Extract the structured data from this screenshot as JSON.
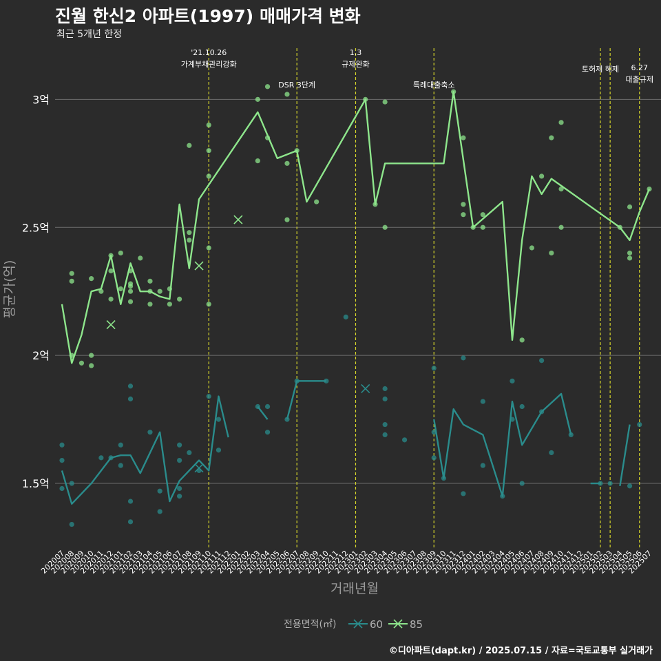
{
  "header": {
    "title": "진월 한신2 아파트(1997) 매매가격 변화",
    "subtitle": "최근 5개년 한정"
  },
  "caption": "©디아파트(dapt.kr) / 2025.07.15 / 자료=국토교통부 실거래가",
  "colors": {
    "background": "#2b2b2b",
    "grid": "#6e6e6e",
    "event_line": "#d7d72a",
    "series_60": "#2a8c8c",
    "series_85": "#8ee68c"
  },
  "chart_data": {
    "type": "line",
    "xlabel": "거래년월",
    "ylabel": "평균가(억)",
    "y_unit": "억",
    "ylim": [
      1.25,
      3.2
    ],
    "yticks": [
      1.5,
      2,
      2.5,
      3
    ],
    "ytick_labels": [
      "1.5억",
      "2억",
      "2.5억",
      "3억"
    ],
    "grid": true,
    "categories": [
      "202007",
      "202008",
      "202009",
      "202010",
      "202011",
      "202012",
      "202101",
      "202102",
      "202103",
      "202104",
      "202105",
      "202106",
      "202107",
      "202108",
      "202109",
      "202110",
      "202111",
      "202112",
      "202201",
      "202202",
      "202203",
      "202204",
      "202205",
      "202206",
      "202207",
      "202208",
      "202209",
      "202210",
      "202211",
      "202212",
      "202301",
      "202302",
      "202303",
      "202304",
      "202305",
      "202306",
      "202307",
      "202308",
      "202309",
      "202310",
      "202311",
      "202312",
      "202401",
      "202402",
      "202403",
      "202404",
      "202405",
      "202406",
      "202407",
      "202408",
      "202409",
      "202410",
      "202411",
      "202412",
      "202501",
      "202502",
      "202503",
      "202504",
      "202505",
      "202506",
      "202507"
    ],
    "legend": {
      "title": "전용면적(㎡)",
      "position": "bottom",
      "items": [
        "60",
        "85"
      ]
    },
    "events": [
      {
        "x": "202110",
        "label": "'21.10.26\n가계부채관리강화"
      },
      {
        "x": "202207",
        "label": "DSR 3단계"
      },
      {
        "x": "202301",
        "label": "1.3\n규제완화"
      },
      {
        "x": "202309",
        "label": "특례대출축소"
      },
      {
        "x": "202502",
        "label": "토허제 해제"
      },
      {
        "x": "202503",
        "label": ""
      },
      {
        "x": "202506",
        "label": "6.27\n대출규제"
      }
    ],
    "series": [
      {
        "name": "60",
        "line": [
          [
            "202007",
            1.55
          ],
          [
            "202008",
            1.42
          ],
          [
            "202009",
            1.46
          ],
          [
            "202010",
            1.5
          ],
          [
            "202011",
            1.55
          ],
          [
            "202012",
            1.6
          ],
          [
            "202101",
            1.61
          ],
          [
            "202102",
            1.61
          ],
          [
            "202103",
            1.54
          ],
          [
            "202104",
            1.62
          ],
          [
            "202105",
            1.7
          ],
          [
            "202106",
            1.43
          ],
          [
            "202107",
            1.51
          ],
          [
            "202108",
            1.55
          ],
          [
            "202109",
            1.59
          ],
          [
            "202110",
            1.55
          ],
          [
            "202111",
            1.84
          ],
          [
            "202112",
            1.68
          ],
          null,
          [
            "202203",
            1.8
          ],
          [
            "202204",
            1.75
          ],
          null,
          [
            "202206",
            1.75
          ],
          [
            "202207",
            1.9
          ],
          [
            "202208",
            1.9
          ],
          [
            "202209",
            1.9
          ],
          [
            "202210",
            1.9
          ],
          null,
          [
            "202309",
            1.75
          ],
          [
            "202310",
            1.52
          ],
          [
            "202311",
            1.79
          ],
          [
            "202312",
            1.73
          ],
          [
            "202402",
            1.69
          ],
          [
            "202404",
            1.45
          ],
          [
            "202405",
            1.82
          ],
          [
            "202406",
            1.65
          ],
          [
            "202408",
            1.78
          ],
          [
            "202410",
            1.85
          ],
          [
            "202411",
            1.69
          ],
          null,
          [
            "202501",
            1.5
          ],
          [
            "202502",
            1.5
          ],
          null,
          [
            "202504",
            1.49
          ],
          [
            "202505",
            1.73
          ]
        ],
        "points": [
          [
            "202007",
            1.65
          ],
          [
            "202007",
            1.59
          ],
          [
            "202007",
            1.48
          ],
          [
            "202008",
            1.34
          ],
          [
            "202008",
            1.5
          ],
          [
            "202011",
            1.6
          ],
          [
            "202012",
            1.6
          ],
          [
            "202101",
            1.65
          ],
          [
            "202101",
            1.57
          ],
          [
            "202102",
            1.88
          ],
          [
            "202102",
            1.83
          ],
          [
            "202102",
            1.43
          ],
          [
            "202102",
            1.35
          ],
          [
            "202104",
            1.7
          ],
          [
            "202105",
            1.47
          ],
          [
            "202105",
            1.39
          ],
          [
            "202107",
            1.65
          ],
          [
            "202107",
            1.59
          ],
          [
            "202107",
            1.48
          ],
          [
            "202107",
            1.45
          ],
          [
            "202108",
            1.62
          ],
          [
            "202109",
            1.55
          ],
          [
            "202110",
            1.84
          ],
          [
            "202111",
            1.75
          ],
          [
            "202111",
            1.63
          ],
          [
            "202203",
            1.8
          ],
          [
            "202204",
            1.8
          ],
          [
            "202204",
            1.7
          ],
          [
            "202206",
            1.75
          ],
          [
            "202207",
            1.9
          ],
          [
            "202210",
            1.9
          ],
          [
            "202212",
            2.15
          ],
          [
            "202304",
            1.87
          ],
          [
            "202304",
            1.83
          ],
          [
            "202304",
            1.73
          ],
          [
            "202304",
            1.69
          ],
          [
            "202306",
            1.67
          ],
          [
            "202309",
            1.95
          ],
          [
            "202309",
            1.7
          ],
          [
            "202309",
            1.6
          ],
          [
            "202310",
            1.52
          ],
          [
            "202312",
            1.99
          ],
          [
            "202312",
            1.46
          ],
          [
            "202402",
            1.82
          ],
          [
            "202402",
            1.57
          ],
          [
            "202404",
            1.45
          ],
          [
            "202405",
            1.9
          ],
          [
            "202405",
            1.75
          ],
          [
            "202406",
            1.8
          ],
          [
            "202406",
            1.5
          ],
          [
            "202408",
            1.98
          ],
          [
            "202408",
            1.78
          ],
          [
            "202409",
            1.62
          ],
          [
            "202411",
            1.69
          ],
          [
            "202502",
            1.5
          ],
          [
            "202503",
            1.5
          ],
          [
            "202505",
            1.49
          ],
          [
            "202506",
            1.73
          ]
        ],
        "x_markers": [
          [
            "202109",
            1.56
          ],
          [
            "202302",
            1.87
          ]
        ]
      },
      {
        "name": "85",
        "line": [
          [
            "202007",
            2.2
          ],
          [
            "202008",
            1.97
          ],
          [
            "202009",
            2.08
          ],
          [
            "202010",
            2.25
          ],
          [
            "202011",
            2.26
          ],
          [
            "202012",
            2.39
          ],
          [
            "202101",
            2.2
          ],
          [
            "202102",
            2.36
          ],
          [
            "202103",
            2.25
          ],
          [
            "202104",
            2.25
          ],
          [
            "202105",
            2.23
          ],
          [
            "202106",
            2.22
          ],
          [
            "202107",
            2.59
          ],
          [
            "202108",
            2.34
          ],
          [
            "202109",
            2.61
          ],
          [
            "202203",
            2.95
          ],
          [
            "202205",
            2.77
          ],
          [
            "202207",
            2.8
          ],
          [
            "202208",
            2.6
          ],
          [
            "202302",
            3.0
          ],
          [
            "202303",
            2.59
          ],
          [
            "202304",
            2.75
          ],
          [
            "202310",
            2.75
          ],
          [
            "202311",
            3.03
          ],
          [
            "202401",
            2.5
          ],
          [
            "202404",
            2.6
          ],
          [
            "202405",
            2.06
          ],
          [
            "202406",
            2.45
          ],
          [
            "202407",
            2.7
          ],
          [
            "202408",
            2.63
          ],
          [
            "202409",
            2.69
          ],
          [
            "202504",
            2.5
          ],
          [
            "202505",
            2.45
          ],
          [
            "202506",
            2.56
          ],
          [
            "202507",
            2.65
          ]
        ],
        "points": [
          [
            "202008",
            2.32
          ],
          [
            "202008",
            2.29
          ],
          [
            "202008",
            2.0
          ],
          [
            "202009",
            1.97
          ],
          [
            "202010",
            2.3
          ],
          [
            "202010",
            2.0
          ],
          [
            "202010",
            1.96
          ],
          [
            "202011",
            2.25
          ],
          [
            "202012",
            2.39
          ],
          [
            "202012",
            2.33
          ],
          [
            "202012",
            2.22
          ],
          [
            "202101",
            2.4
          ],
          [
            "202101",
            2.26
          ],
          [
            "202102",
            2.28
          ],
          [
            "202102",
            2.33
          ],
          [
            "202102",
            2.27
          ],
          [
            "202102",
            2.25
          ],
          [
            "202102",
            2.21
          ],
          [
            "202103",
            2.38
          ],
          [
            "202104",
            2.29
          ],
          [
            "202104",
            2.25
          ],
          [
            "202104",
            2.2
          ],
          [
            "202105",
            2.25
          ],
          [
            "202106",
            2.26
          ],
          [
            "202106",
            2.2
          ],
          [
            "202107",
            2.22
          ],
          [
            "202108",
            2.82
          ],
          [
            "202108",
            2.48
          ],
          [
            "202108",
            2.45
          ],
          [
            "202110",
            2.9
          ],
          [
            "202110",
            2.8
          ],
          [
            "202110",
            2.7
          ],
          [
            "202110",
            2.42
          ],
          [
            "202110",
            2.2
          ],
          [
            "202203",
            3.0
          ],
          [
            "202203",
            2.76
          ],
          [
            "202204",
            3.05
          ],
          [
            "202204",
            2.85
          ],
          [
            "202206",
            3.02
          ],
          [
            "202206",
            2.75
          ],
          [
            "202206",
            2.53
          ],
          [
            "202207",
            2.8
          ],
          [
            "202209",
            2.6
          ],
          [
            "202302",
            3.0
          ],
          [
            "202303",
            2.59
          ],
          [
            "202304",
            2.99
          ],
          [
            "202304",
            2.5
          ],
          [
            "202311",
            3.03
          ],
          [
            "202312",
            2.85
          ],
          [
            "202312",
            2.59
          ],
          [
            "202312",
            2.55
          ],
          [
            "202401",
            2.5
          ],
          [
            "202402",
            2.55
          ],
          [
            "202402",
            2.5
          ],
          [
            "202406",
            2.06
          ],
          [
            "202407",
            2.42
          ],
          [
            "202408",
            2.7
          ],
          [
            "202409",
            2.85
          ],
          [
            "202409",
            2.4
          ],
          [
            "202410",
            2.91
          ],
          [
            "202410",
            2.65
          ],
          [
            "202410",
            2.5
          ],
          [
            "202504",
            2.5
          ],
          [
            "202505",
            2.58
          ],
          [
            "202505",
            2.4
          ],
          [
            "202505",
            2.38
          ],
          [
            "202507",
            2.65
          ]
        ],
        "x_markers": [
          [
            "202012",
            2.12
          ],
          [
            "202109",
            2.35
          ],
          [
            "202201",
            2.53
          ]
        ]
      }
    ]
  }
}
